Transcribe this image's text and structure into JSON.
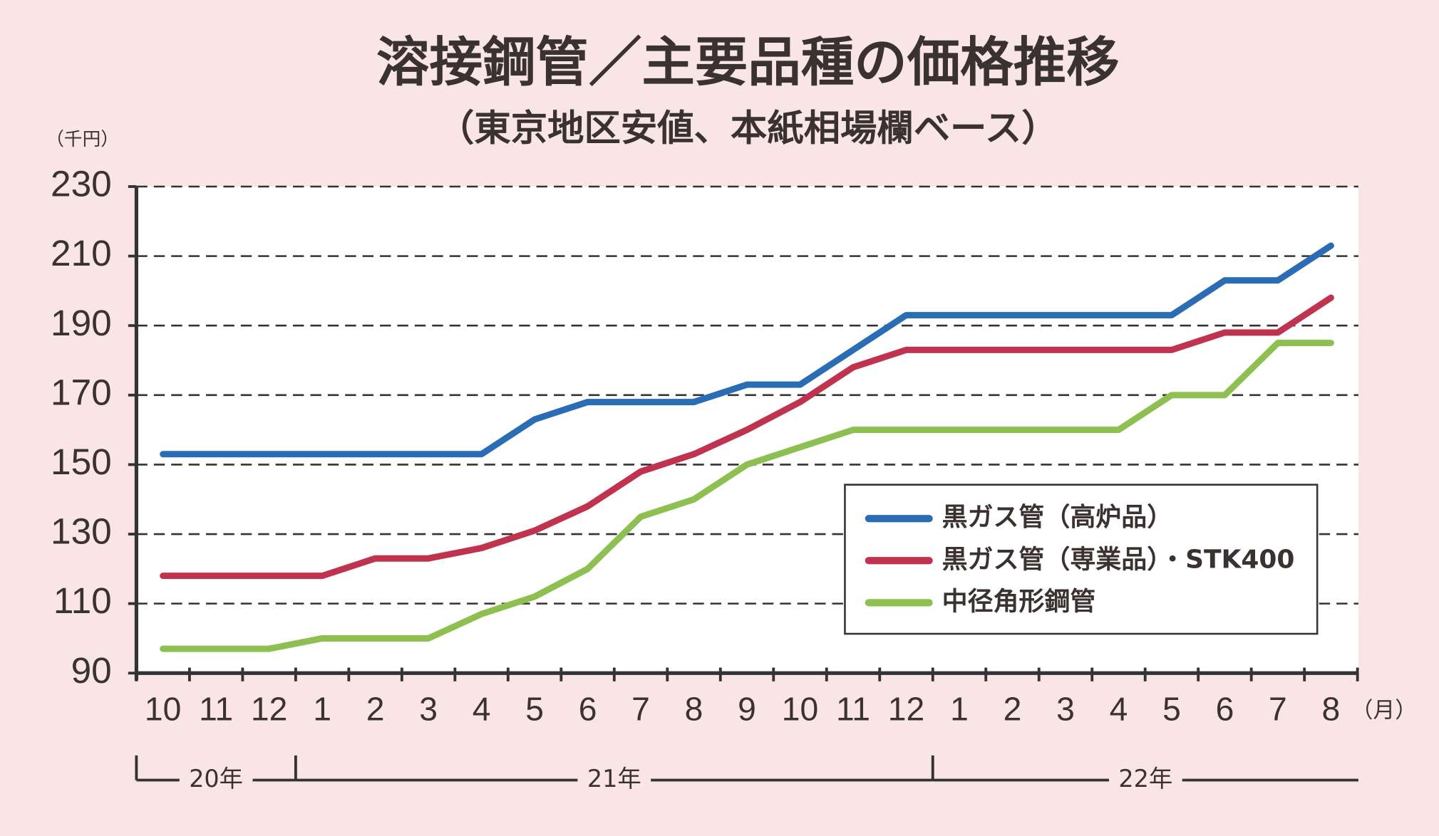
{
  "chart_data": {
    "type": "line",
    "title": "溶接鋼管／主要品種の価格推移",
    "subtitle": "（東京地区安値、本紙相場欄ベース）",
    "y_unit": "（千円）",
    "x_unit": "（月）",
    "categories": [
      "10",
      "11",
      "12",
      "1",
      "2",
      "3",
      "4",
      "5",
      "6",
      "7",
      "8",
      "9",
      "10",
      "11",
      "12",
      "1",
      "2",
      "3",
      "4",
      "5",
      "6",
      "7",
      "8"
    ],
    "year_labels": [
      "20年",
      "21年",
      "22年"
    ],
    "series": [
      {
        "name": "黒ガス管（高炉品）",
        "color": "#2a6db5",
        "values": [
          153,
          153,
          153,
          153,
          153,
          153,
          153,
          163,
          168,
          168,
          168,
          173,
          173,
          183,
          193,
          193,
          193,
          193,
          193,
          193,
          203,
          203,
          213
        ]
      },
      {
        "name": "黒ガス管（専業品）・STK400",
        "color": "#c0334f",
        "values": [
          118,
          118,
          118,
          118,
          123,
          123,
          126,
          131,
          138,
          148,
          153,
          160,
          168,
          178,
          183,
          183,
          183,
          183,
          183,
          183,
          188,
          188,
          198
        ]
      },
      {
        "name": "中径角形鋼管",
        "color": "#8dc051",
        "values": [
          97,
          97,
          97,
          100,
          100,
          100,
          107,
          112,
          120,
          135,
          140,
          150,
          155,
          160,
          160,
          160,
          160,
          160,
          160,
          170,
          170,
          185,
          185
        ]
      }
    ],
    "ylim": [
      90,
      230
    ],
    "yticks": [
      90,
      110,
      130,
      150,
      170,
      190,
      210,
      230
    ],
    "grid": true,
    "legend": "lower-right"
  }
}
